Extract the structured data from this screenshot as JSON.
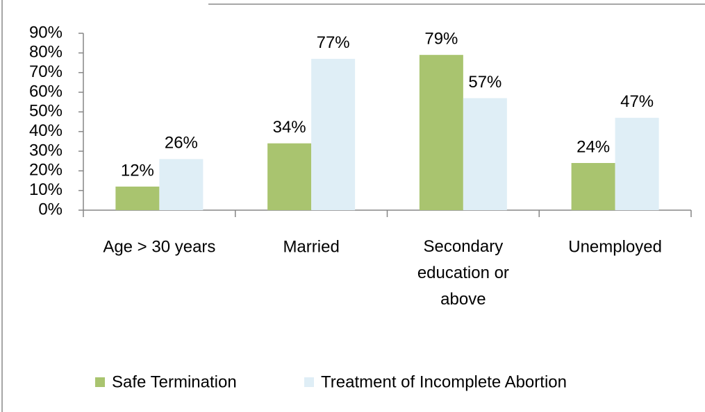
{
  "chart_data": {
    "type": "bar",
    "categories": [
      "Age > 30 years",
      "Married",
      "Secondary education or above",
      "Unemployed"
    ],
    "series": [
      {
        "name": "Safe Termination",
        "color": "#a9c46f",
        "values": [
          12,
          34,
          79,
          24
        ],
        "value_labels": [
          "12%",
          "34%",
          "79%",
          "24%"
        ]
      },
      {
        "name": "Treatment of Incomplete Abortion",
        "color": "#dfeef6",
        "values": [
          26,
          77,
          57,
          47
        ],
        "value_labels": [
          "26%",
          "77%",
          "57%",
          "47%"
        ]
      }
    ],
    "ylim": [
      0,
      90
    ],
    "yticks": [
      {
        "value": 0,
        "label": "0%"
      },
      {
        "value": 10,
        "label": "10%"
      },
      {
        "value": 20,
        "label": "20%"
      },
      {
        "value": 30,
        "label": "30%"
      },
      {
        "value": 40,
        "label": "40%"
      },
      {
        "value": 50,
        "label": "50%"
      },
      {
        "value": 60,
        "label": "60%"
      },
      {
        "value": 70,
        "label": "70%"
      },
      {
        "value": 80,
        "label": "80%"
      },
      {
        "value": 90,
        "label": "90%"
      }
    ],
    "legend": "bottom"
  }
}
